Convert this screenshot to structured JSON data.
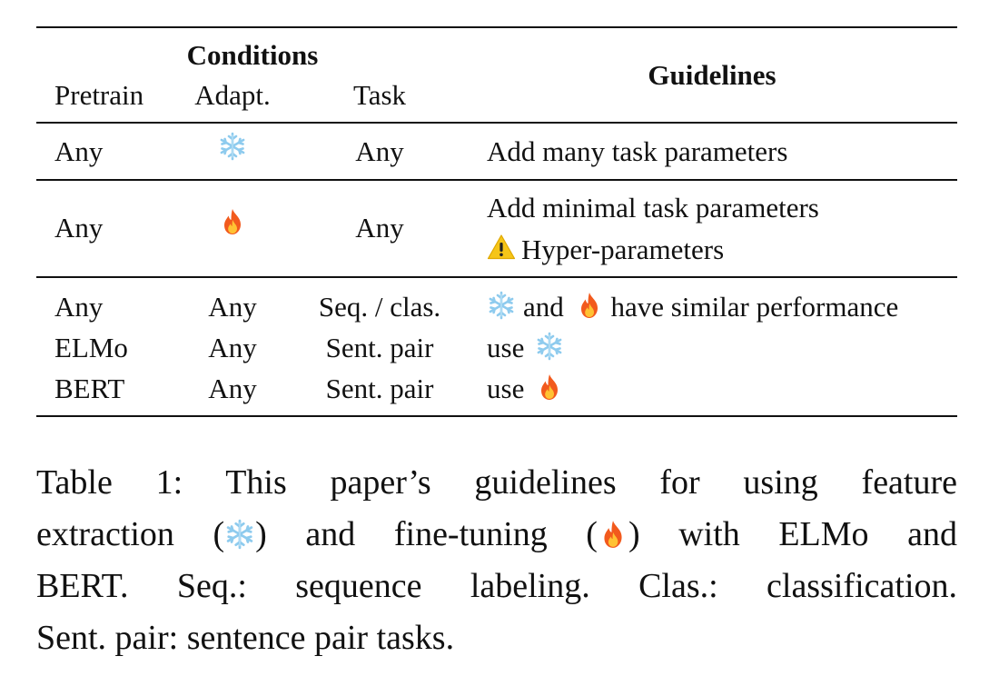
{
  "table": {
    "header": {
      "conditions": "Conditions",
      "pretrain": "Pretrain",
      "adapt": "Adapt.",
      "task": "Task",
      "guidelines": "Guidelines"
    },
    "rows": [
      {
        "pretrain": "Any",
        "adapt_icon": "snowflake-icon",
        "task": "Any",
        "guideline": "Add many task parameters"
      },
      {
        "pretrain": "Any",
        "adapt_icon": "fire-icon",
        "task": "Any",
        "guideline_line1": "Add minimal task parameters",
        "guideline_line2_icon": "warning-icon",
        "guideline_line2": "Hyper-parameters"
      },
      {
        "pretrain": "Any",
        "adapt": "Any",
        "task": "Seq. / clas.",
        "guideline_and": "and",
        "guideline_rest": "have similar performance"
      },
      {
        "pretrain": "ELMo",
        "adapt": "Any",
        "task": "Sent. pair",
        "guideline": "use",
        "guideline_icon": "snowflake-icon"
      },
      {
        "pretrain": "BERT",
        "adapt": "Any",
        "task": "Sent. pair",
        "guideline": "use",
        "guideline_icon": "fire-icon"
      }
    ]
  },
  "caption": {
    "line1": "Table 1:  This paper’s guidelines for using feature",
    "line2_a": "extraction (",
    "line2_b": ") and fine-tuning (",
    "line2_c": ") with ELMo and",
    "line3": "BERT. Seq.:  sequence labeling.  Clas.:  classification.",
    "line4": "Sent. pair: sentence pair tasks."
  },
  "colors": {
    "text": "#111111",
    "snowflake": "#9fd3f0",
    "fire_outer": "#f25a1d",
    "fire_inner": "#ffc233",
    "warning": "#f5c518"
  }
}
